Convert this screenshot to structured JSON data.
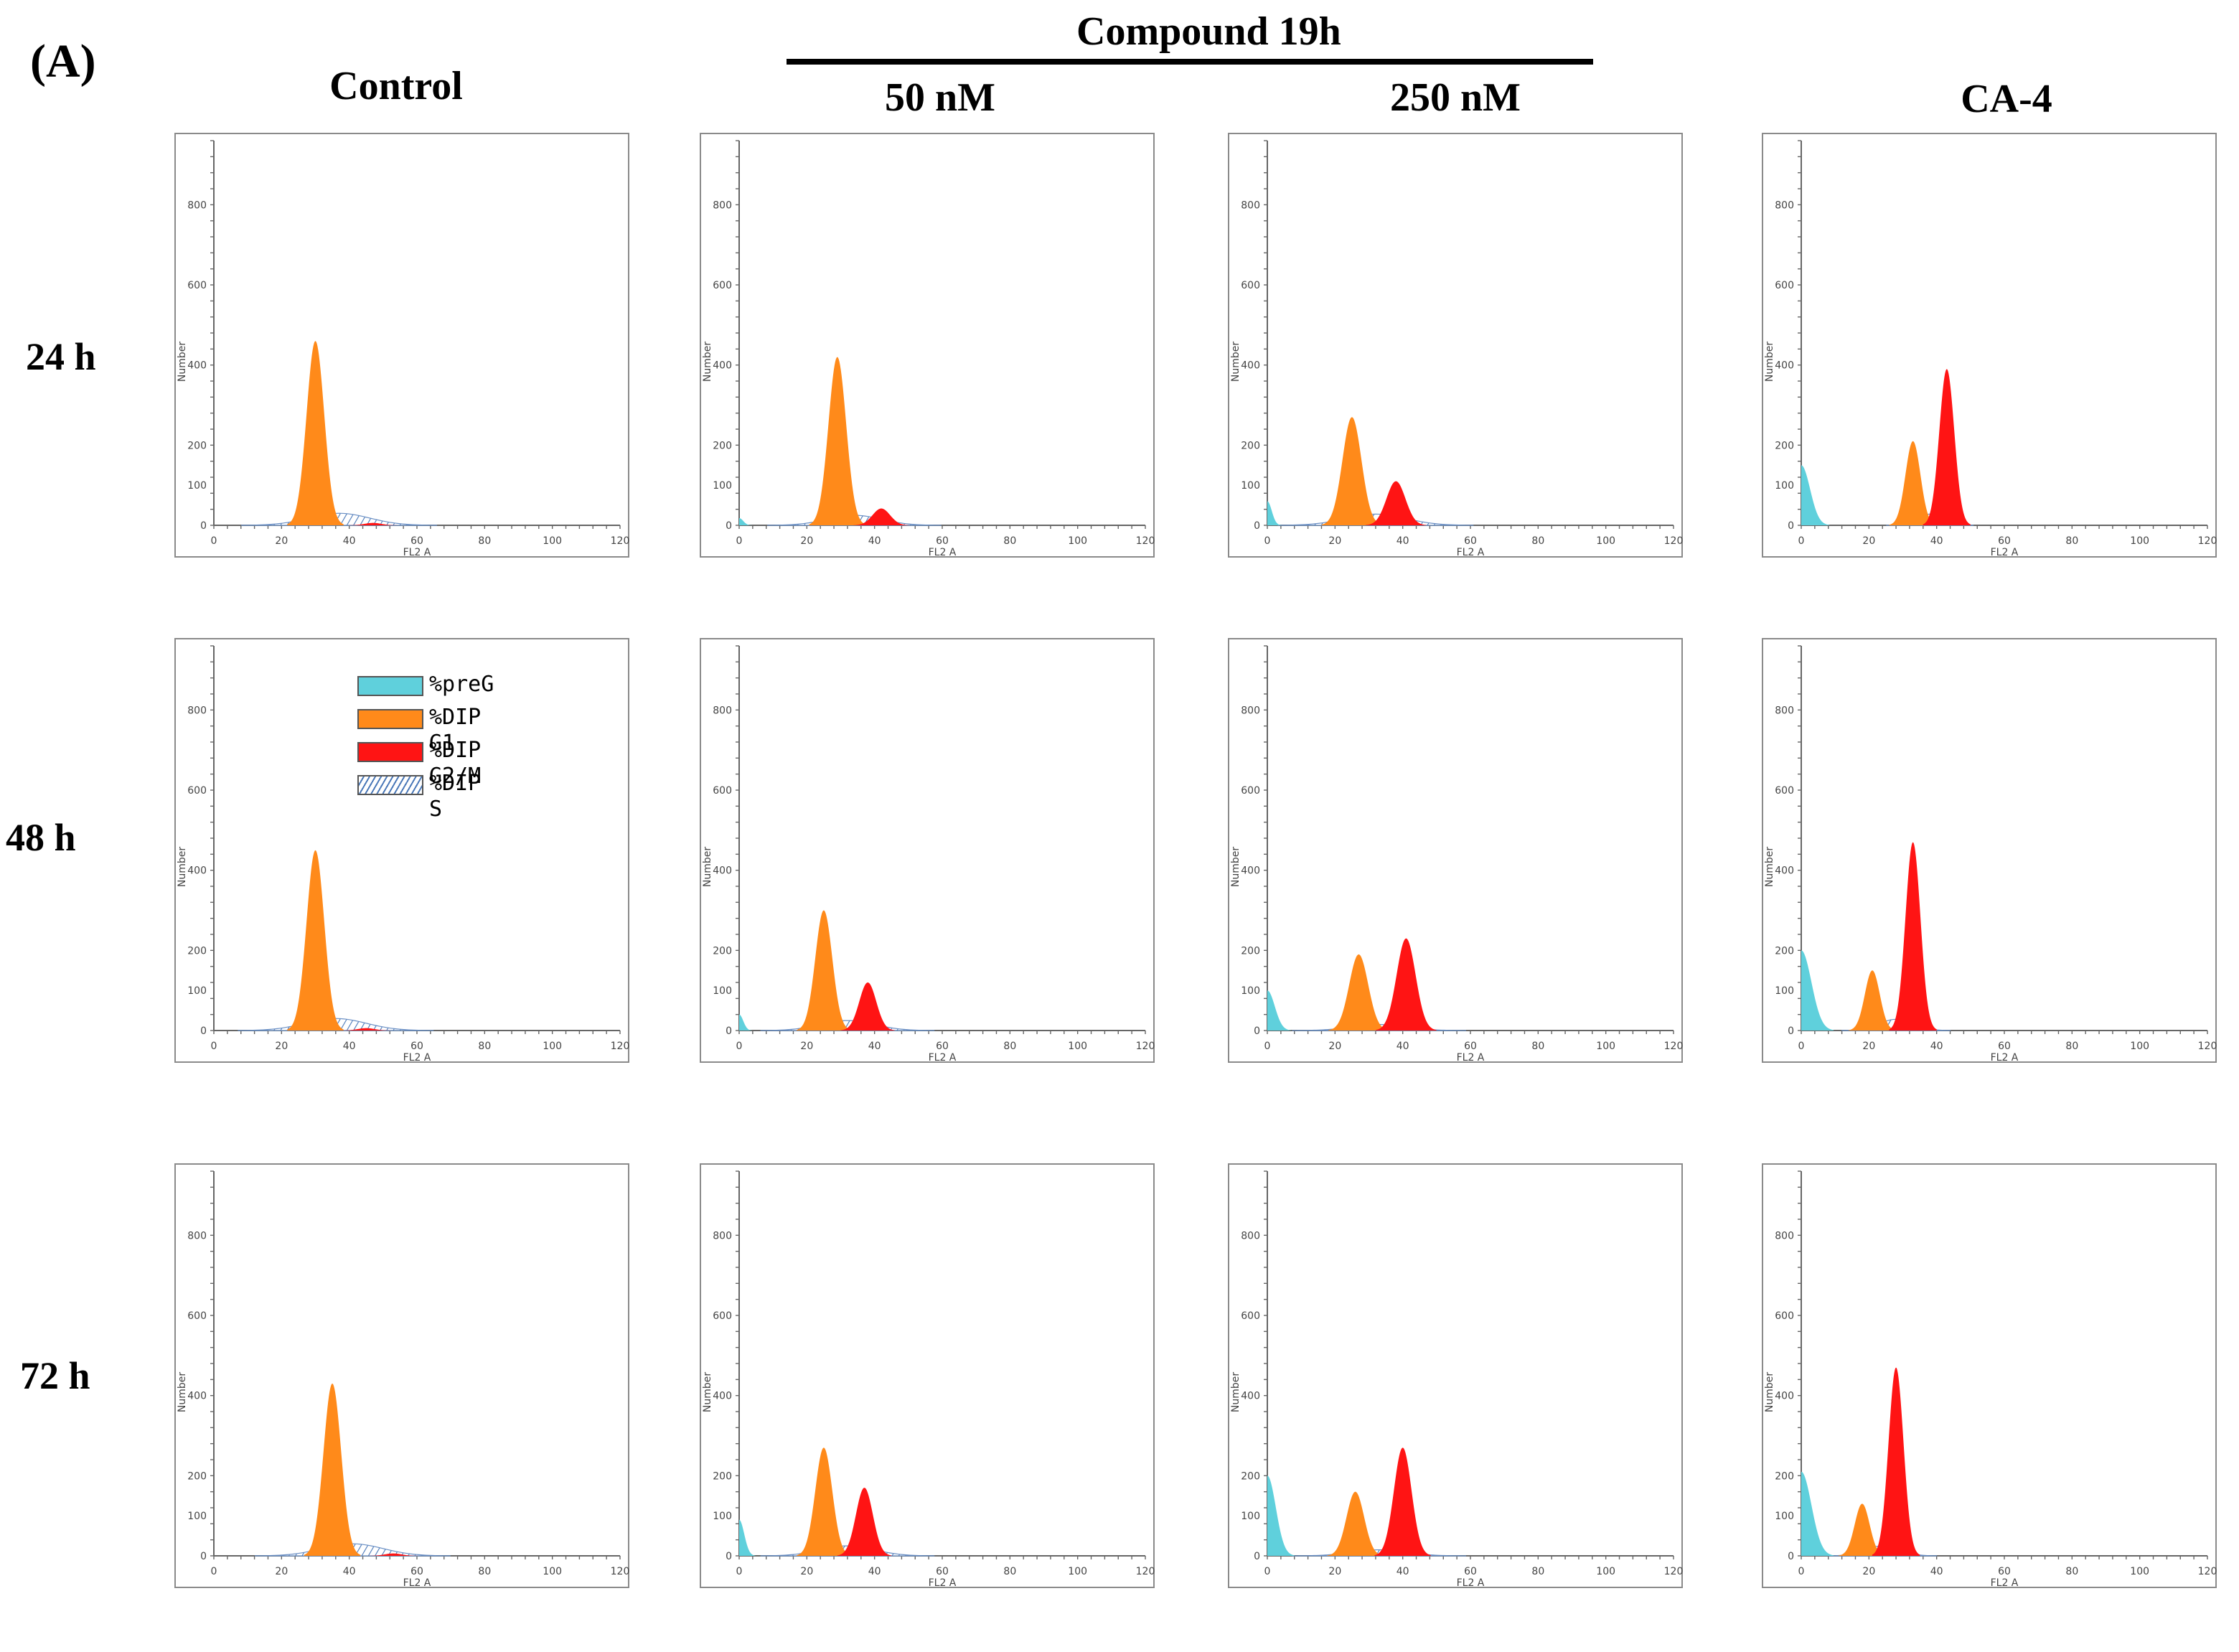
{
  "headings": {
    "panel": "(A)",
    "compound": "Compound 19h",
    "columns": [
      "Control",
      "50 nM",
      "250 nM",
      "CA-4"
    ],
    "rows": [
      "24 h",
      "48 h",
      "72 h"
    ]
  },
  "legend": {
    "items": [
      {
        "label": "%preG",
        "color": "#5fd0dc"
      },
      {
        "label": "%DIP G1",
        "color": "#ff8a1a"
      },
      {
        "label": "%DIP G2/M",
        "color": "#ff1414"
      },
      {
        "label": "%DIP S",
        "color": "#ffffff",
        "pattern": "hatched-blue"
      }
    ]
  },
  "chart_data": [
    {
      "type": "area",
      "group": "Control",
      "row": "24 h",
      "xlabel": "FL2 A",
      "ylabel": "Number",
      "xlim": [
        0,
        120
      ],
      "ylim": [
        0,
        960
      ],
      "xticks": [
        0,
        20,
        40,
        60,
        80,
        100,
        120
      ],
      "yticks": [
        0,
        100,
        200,
        400,
        600,
        800
      ],
      "series": [
        {
          "name": "%DIP G1",
          "center": 30,
          "width": 2.6,
          "peak": 460
        },
        {
          "name": "%DIP S",
          "center": 37,
          "width": 9,
          "peak": 30
        },
        {
          "name": "%DIP G2/M",
          "center": 47,
          "width": 2.5,
          "peak": 6
        }
      ]
    },
    {
      "type": "area",
      "group": "50 nM",
      "row": "24 h",
      "xlabel": "FL2 A",
      "ylabel": "Number",
      "xlim": [
        0,
        120
      ],
      "ylim": [
        0,
        960
      ],
      "xticks": [
        0,
        20,
        40,
        60,
        80,
        100,
        120
      ],
      "yticks": [
        0,
        100,
        200,
        400,
        600,
        800
      ],
      "series": [
        {
          "name": "%preG",
          "center": 0,
          "width": 1.2,
          "peak": 18
        },
        {
          "name": "%DIP G1",
          "center": 29,
          "width": 2.6,
          "peak": 420
        },
        {
          "name": "%DIP S",
          "center": 34,
          "width": 8,
          "peak": 25
        },
        {
          "name": "%DIP G2/M",
          "center": 42,
          "width": 2.6,
          "peak": 42
        }
      ]
    },
    {
      "type": "area",
      "group": "250 nM",
      "row": "24 h",
      "xlabel": "FL2 A",
      "ylabel": "Number",
      "xlim": [
        0,
        120
      ],
      "ylim": [
        0,
        960
      ],
      "xticks": [
        0,
        20,
        40,
        60,
        80,
        100,
        120
      ],
      "yticks": [
        0,
        100,
        200,
        400,
        600,
        800
      ],
      "series": [
        {
          "name": "%preG",
          "center": 0,
          "width": 1.3,
          "peak": 60
        },
        {
          "name": "%DIP G1",
          "center": 25,
          "width": 2.8,
          "peak": 270
        },
        {
          "name": "%DIP S",
          "center": 32,
          "width": 9,
          "peak": 28
        },
        {
          "name": "%DIP G2/M",
          "center": 38,
          "width": 2.8,
          "peak": 110
        }
      ]
    },
    {
      "type": "area",
      "group": "CA-4",
      "row": "24 h",
      "xlabel": "FL2 A",
      "ylabel": "Number",
      "xlim": [
        0,
        120
      ],
      "ylim": [
        0,
        960
      ],
      "xticks": [
        0,
        20,
        40,
        60,
        80,
        100,
        120
      ],
      "yticks": [
        0,
        100,
        200,
        400,
        600,
        800
      ],
      "series": [
        {
          "name": "%preG",
          "center": 0,
          "width": 2.6,
          "peak": 150
        },
        {
          "name": "%DIP G1",
          "center": 33,
          "width": 2.2,
          "peak": 210
        },
        {
          "name": "%DIP S",
          "center": 38,
          "width": 4,
          "peak": 28
        },
        {
          "name": "%DIP G2/M",
          "center": 43,
          "width": 2.2,
          "peak": 390
        }
      ]
    },
    {
      "type": "area",
      "group": "Control",
      "row": "48 h",
      "xlabel": "FL2 A",
      "ylabel": "Number",
      "xlim": [
        0,
        120
      ],
      "ylim": [
        0,
        960
      ],
      "xticks": [
        0,
        20,
        40,
        60,
        80,
        100,
        120
      ],
      "yticks": [
        0,
        100,
        200,
        400,
        600,
        800
      ],
      "series": [
        {
          "name": "%DIP G1",
          "center": 30,
          "width": 2.6,
          "peak": 450
        },
        {
          "name": "%DIP S",
          "center": 36,
          "width": 9,
          "peak": 30
        },
        {
          "name": "%DIP G2/M",
          "center": 45,
          "width": 2.5,
          "peak": 6
        }
      ]
    },
    {
      "type": "area",
      "group": "50 nM",
      "row": "48 h",
      "xlabel": "FL2 A",
      "ylabel": "Number",
      "xlim": [
        0,
        120
      ],
      "ylim": [
        0,
        960
      ],
      "xticks": [
        0,
        20,
        40,
        60,
        80,
        100,
        120
      ],
      "yticks": [
        0,
        100,
        200,
        400,
        600,
        800
      ],
      "series": [
        {
          "name": "%preG",
          "center": 0,
          "width": 1.2,
          "peak": 40
        },
        {
          "name": "%DIP G1",
          "center": 25,
          "width": 2.5,
          "peak": 300
        },
        {
          "name": "%DIP S",
          "center": 32,
          "width": 8,
          "peak": 25
        },
        {
          "name": "%DIP G2/M",
          "center": 38,
          "width": 2.5,
          "peak": 120
        }
      ]
    },
    {
      "type": "area",
      "group": "250 nM",
      "row": "48 h",
      "xlabel": "FL2 A",
      "ylabel": "Number",
      "xlim": [
        0,
        120
      ],
      "ylim": [
        0,
        960
      ],
      "xticks": [
        0,
        20,
        40,
        60,
        80,
        100,
        120
      ],
      "yticks": [
        0,
        100,
        200,
        400,
        600,
        800
      ],
      "series": [
        {
          "name": "%preG",
          "center": 0,
          "width": 2.2,
          "peak": 100
        },
        {
          "name": "%DIP G1",
          "center": 27,
          "width": 2.8,
          "peak": 190
        },
        {
          "name": "%DIP S",
          "center": 33,
          "width": 8,
          "peak": 15
        },
        {
          "name": "%DIP G2/M",
          "center": 41,
          "width": 2.8,
          "peak": 230
        }
      ]
    },
    {
      "type": "area",
      "group": "CA-4",
      "row": "48 h",
      "xlabel": "FL2 A",
      "ylabel": "Number",
      "xlim": [
        0,
        120
      ],
      "ylim": [
        0,
        960
      ],
      "xticks": [
        0,
        20,
        40,
        60,
        80,
        100,
        120
      ],
      "yticks": [
        0,
        100,
        200,
        400,
        600,
        800
      ],
      "series": [
        {
          "name": "%preG",
          "center": 0,
          "width": 3,
          "peak": 200
        },
        {
          "name": "%DIP G1",
          "center": 21,
          "width": 2.2,
          "peak": 150
        },
        {
          "name": "%DIP S",
          "center": 28,
          "width": 5,
          "peak": 28
        },
        {
          "name": "%DIP G2/M",
          "center": 33,
          "width": 2.2,
          "peak": 470
        }
      ]
    },
    {
      "type": "area",
      "group": "Control",
      "row": "72 h",
      "xlabel": "FL2 A",
      "ylabel": "Number",
      "xlim": [
        0,
        120
      ],
      "ylim": [
        0,
        960
      ],
      "xticks": [
        0,
        20,
        40,
        60,
        80,
        100,
        120
      ],
      "yticks": [
        0,
        100,
        200,
        400,
        600,
        800
      ],
      "series": [
        {
          "name": "%DIP G1",
          "center": 35,
          "width": 2.6,
          "peak": 430
        },
        {
          "name": "%DIP S",
          "center": 41,
          "width": 9,
          "peak": 30
        },
        {
          "name": "%DIP G2/M",
          "center": 53,
          "width": 2.5,
          "peak": 6
        }
      ]
    },
    {
      "type": "area",
      "group": "50 nM",
      "row": "72 h",
      "xlabel": "FL2 A",
      "ylabel": "Number",
      "xlim": [
        0,
        120
      ],
      "ylim": [
        0,
        960
      ],
      "xticks": [
        0,
        20,
        40,
        60,
        80,
        100,
        120
      ],
      "yticks": [
        0,
        100,
        200,
        400,
        600,
        800
      ],
      "series": [
        {
          "name": "%preG",
          "center": 0,
          "width": 1.5,
          "peak": 90
        },
        {
          "name": "%DIP G1",
          "center": 25,
          "width": 2.5,
          "peak": 270
        },
        {
          "name": "%DIP S",
          "center": 32,
          "width": 8,
          "peak": 25
        },
        {
          "name": "%DIP G2/M",
          "center": 37,
          "width": 2.5,
          "peak": 170
        }
      ]
    },
    {
      "type": "area",
      "group": "250 nM",
      "row": "72 h",
      "xlabel": "FL2 A",
      "ylabel": "Number",
      "xlim": [
        0,
        120
      ],
      "ylim": [
        0,
        960
      ],
      "xticks": [
        0,
        20,
        40,
        60,
        80,
        100,
        120
      ],
      "yticks": [
        0,
        100,
        200,
        400,
        600,
        800
      ],
      "series": [
        {
          "name": "%preG",
          "center": 0,
          "width": 2.5,
          "peak": 200
        },
        {
          "name": "%DIP G1",
          "center": 26,
          "width": 2.6,
          "peak": 160
        },
        {
          "name": "%DIP S",
          "center": 33,
          "width": 8,
          "peak": 15
        },
        {
          "name": "%DIP G2/M",
          "center": 40,
          "width": 2.6,
          "peak": 270
        }
      ]
    },
    {
      "type": "area",
      "group": "CA-4",
      "row": "72 h",
      "xlabel": "FL2 A",
      "ylabel": "Number",
      "xlim": [
        0,
        120
      ],
      "ylim": [
        0,
        960
      ],
      "xticks": [
        0,
        20,
        40,
        60,
        80,
        100,
        120
      ],
      "yticks": [
        0,
        100,
        200,
        400,
        600,
        800
      ],
      "series": [
        {
          "name": "%preG",
          "center": 0,
          "width": 3,
          "peak": 210
        },
        {
          "name": "%DIP G1",
          "center": 18,
          "width": 2.2,
          "peak": 130
        },
        {
          "name": "%DIP S",
          "center": 24,
          "width": 5,
          "peak": 25
        },
        {
          "name": "%DIP G2/M",
          "center": 28,
          "width": 2.2,
          "peak": 470
        }
      ]
    }
  ]
}
